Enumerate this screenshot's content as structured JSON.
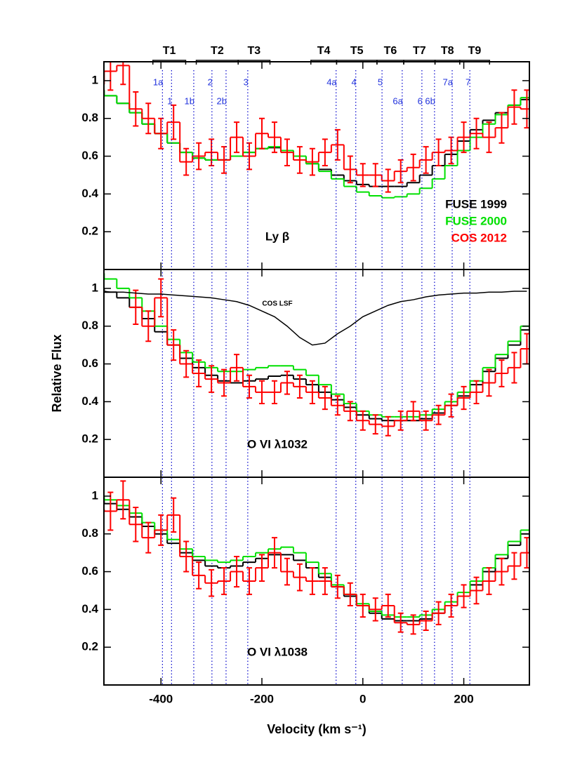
{
  "chart_data": [
    {
      "type": "step",
      "label": "Ly β",
      "x": [
        -525,
        -500,
        -475,
        -450,
        -425,
        -400,
        -375,
        -350,
        -325,
        -300,
        -275,
        -250,
        -225,
        -200,
        -175,
        -150,
        -125,
        -100,
        -75,
        -50,
        -25,
        0,
        25,
        50,
        75,
        100,
        125,
        150,
        175,
        200,
        225,
        250,
        275,
        300,
        325
      ],
      "series": [
        {
          "name": "FUSE 1999",
          "color": "#000000",
          "style": "steps",
          "values": [
            0.95,
            0.92,
            0.88,
            0.83,
            0.77,
            0.72,
            0.67,
            0.62,
            0.59,
            0.58,
            0.58,
            0.6,
            0.62,
            0.64,
            0.645,
            0.63,
            0.6,
            0.56,
            0.53,
            0.5,
            0.47,
            0.45,
            0.44,
            0.44,
            0.44,
            0.46,
            0.5,
            0.55,
            0.61,
            0.68,
            0.74,
            0.79,
            0.83,
            0.87,
            0.9
          ]
        },
        {
          "name": "FUSE 2000",
          "color": "#00e000",
          "style": "steps",
          "values": [
            0.95,
            0.92,
            0.88,
            0.83,
            0.77,
            0.72,
            0.67,
            0.62,
            0.59,
            0.58,
            0.58,
            0.6,
            0.62,
            0.64,
            0.65,
            0.63,
            0.6,
            0.56,
            0.52,
            0.48,
            0.44,
            0.41,
            0.39,
            0.38,
            0.385,
            0.4,
            0.43,
            0.48,
            0.55,
            0.63,
            0.7,
            0.77,
            0.82,
            0.87,
            0.91
          ]
        },
        {
          "name": "COS 2012",
          "color": "#ff0000",
          "style": "steps",
          "values": [
            0.98,
            1.05,
            1.08,
            0.85,
            0.8,
            0.72,
            0.78,
            0.57,
            0.6,
            0.62,
            0.58,
            0.7,
            0.6,
            0.72,
            0.7,
            0.62,
            0.58,
            0.57,
            0.62,
            0.66,
            0.53,
            0.5,
            0.5,
            0.47,
            0.52,
            0.54,
            0.58,
            0.62,
            0.63,
            0.7,
            0.72,
            0.7,
            0.75,
            0.86,
            0.85
          ],
          "errors": [
            0.1,
            0.1,
            0.1,
            0.09,
            0.08,
            0.08,
            0.09,
            0.07,
            0.07,
            0.07,
            0.07,
            0.08,
            0.07,
            0.08,
            0.08,
            0.07,
            0.07,
            0.07,
            0.07,
            0.08,
            0.07,
            0.06,
            0.06,
            0.06,
            0.06,
            0.07,
            0.07,
            0.07,
            0.07,
            0.08,
            0.08,
            0.08,
            0.08,
            0.09,
            0.1
          ]
        }
      ],
      "xlim": [
        -513,
        330
      ],
      "ylim": [
        0,
        1.1
      ],
      "xticks": [
        -400,
        -200,
        0,
        200
      ],
      "yticks": [
        0.2,
        0.4,
        0.6,
        0.8,
        1
      ],
      "ranges": [
        {
          "label": "T1",
          "from": -416,
          "to": -351
        },
        {
          "label": "T2",
          "from": -330,
          "to": -247
        },
        {
          "label": "T3",
          "from": -247,
          "to": -184
        },
        {
          "label": "T4",
          "from": -103,
          "to": -52
        },
        {
          "label": "T5",
          "from": -52,
          "to": 28
        },
        {
          "label": "T6",
          "from": 28,
          "to": 81
        },
        {
          "label": "T7",
          "from": 81,
          "to": 143
        },
        {
          "label": "T8",
          "from": 143,
          "to": 192
        },
        {
          "label": "T9",
          "from": 192,
          "to": 251
        }
      ],
      "components": [
        [
          {
            "label": "1a",
            "v": -397
          },
          {
            "label": "2",
            "v": -299
          },
          {
            "label": "3",
            "v": -228
          },
          {
            "label": "4a",
            "v": -53
          },
          {
            "label": "4",
            "v": -14
          },
          {
            "label": "5",
            "v": 38
          },
          {
            "label": "7a",
            "v": 177
          },
          {
            "label": "7",
            "v": 212
          }
        ],
        [
          {
            "label": "1",
            "v": -379
          },
          {
            "label": "1b",
            "v": -335
          },
          {
            "label": "2b",
            "v": -271
          },
          {
            "label": "6a",
            "v": 78
          },
          {
            "label": "6",
            "v": 117
          },
          {
            "label": "6b",
            "v": 142
          }
        ]
      ]
    },
    {
      "type": "step",
      "label": "O VI λ1032",
      "ylabel": "Relative Flux",
      "x": [
        -525,
        -500,
        -475,
        -450,
        -425,
        -400,
        -375,
        -350,
        -325,
        -300,
        -275,
        -250,
        -225,
        -200,
        -175,
        -150,
        -125,
        -100,
        -75,
        -50,
        -25,
        0,
        25,
        50,
        75,
        100,
        125,
        150,
        175,
        200,
        225,
        250,
        275,
        300,
        325
      ],
      "series": [
        {
          "color": "#000000",
          "style": "steps",
          "values": [
            1.0,
            0.98,
            0.95,
            0.9,
            0.84,
            0.77,
            0.7,
            0.63,
            0.58,
            0.54,
            0.51,
            0.5,
            0.51,
            0.52,
            0.535,
            0.54,
            0.52,
            0.49,
            0.45,
            0.41,
            0.37,
            0.33,
            0.31,
            0.3,
            0.3,
            0.3,
            0.31,
            0.34,
            0.38,
            0.43,
            0.49,
            0.56,
            0.63,
            0.7,
            0.78
          ]
        },
        {
          "color": "#00e000",
          "style": "steps",
          "values": [
            1.08,
            1.05,
            1.0,
            0.95,
            0.88,
            0.8,
            0.73,
            0.66,
            0.61,
            0.58,
            0.56,
            0.56,
            0.57,
            0.58,
            0.59,
            0.59,
            0.57,
            0.54,
            0.49,
            0.44,
            0.39,
            0.35,
            0.33,
            0.32,
            0.32,
            0.32,
            0.33,
            0.36,
            0.4,
            0.45,
            0.51,
            0.58,
            0.65,
            0.72,
            0.8
          ]
        },
        {
          "color": "#ff0000",
          "style": "steps",
          "values": [
            null,
            null,
            null,
            0.9,
            0.8,
            0.95,
            0.7,
            0.6,
            0.55,
            0.52,
            0.5,
            0.58,
            0.48,
            0.45,
            0.45,
            0.5,
            0.48,
            0.45,
            0.42,
            0.38,
            0.35,
            0.3,
            0.28,
            0.27,
            0.3,
            0.35,
            0.3,
            0.33,
            0.38,
            0.42,
            0.45,
            0.5,
            0.55,
            0.58,
            0.68
          ],
          "errors": [
            null,
            null,
            null,
            0.09,
            0.08,
            0.1,
            0.08,
            0.07,
            0.07,
            0.07,
            0.07,
            0.07,
            0.06,
            0.06,
            0.06,
            0.06,
            0.06,
            0.06,
            0.06,
            0.05,
            0.05,
            0.05,
            0.05,
            0.05,
            0.05,
            0.05,
            0.05,
            0.05,
            0.06,
            0.06,
            0.06,
            0.07,
            0.07,
            0.08,
            0.08
          ]
        },
        {
          "name": "COS LSF",
          "color": "#000000",
          "style": "line",
          "values": [
            0.99,
            0.98,
            0.98,
            0.975,
            0.97,
            0.97,
            0.965,
            0.96,
            0.955,
            0.95,
            0.94,
            0.93,
            0.91,
            0.88,
            0.85,
            0.8,
            0.74,
            0.7,
            0.71,
            0.76,
            0.8,
            0.85,
            0.88,
            0.91,
            0.93,
            0.94,
            0.955,
            0.965,
            0.97,
            0.975,
            0.975,
            0.98,
            0.98,
            0.985,
            0.985
          ]
        }
      ],
      "xlim": [
        -513,
        330
      ],
      "ylim": [
        0,
        1.1
      ],
      "xticks": [
        -400,
        -200,
        0,
        200
      ],
      "yticks": [
        0.2,
        0.4,
        0.6,
        0.8,
        1
      ]
    },
    {
      "type": "step",
      "label": "O VI λ1038",
      "xlabel": "Velocity (km s⁻¹)",
      "x": [
        -525,
        -500,
        -475,
        -450,
        -425,
        -400,
        -375,
        -350,
        -325,
        -300,
        -275,
        -250,
        -225,
        -200,
        -175,
        -150,
        -125,
        -100,
        -75,
        -50,
        -25,
        0,
        25,
        50,
        75,
        100,
        125,
        150,
        175,
        200,
        225,
        250,
        275,
        300,
        325
      ],
      "series": [
        {
          "color": "#000000",
          "style": "steps",
          "values": [
            0.99,
            0.96,
            0.93,
            0.89,
            0.84,
            0.8,
            0.75,
            0.7,
            0.66,
            0.63,
            0.62,
            0.63,
            0.65,
            0.67,
            0.69,
            0.69,
            0.66,
            0.62,
            0.57,
            0.52,
            0.47,
            0.42,
            0.38,
            0.35,
            0.34,
            0.34,
            0.35,
            0.38,
            0.42,
            0.47,
            0.53,
            0.6,
            0.67,
            0.74,
            0.8
          ]
        },
        {
          "color": "#00e000",
          "style": "steps",
          "values": [
            1.0,
            0.98,
            0.95,
            0.91,
            0.86,
            0.82,
            0.77,
            0.72,
            0.68,
            0.66,
            0.65,
            0.66,
            0.68,
            0.7,
            0.72,
            0.73,
            0.7,
            0.65,
            0.59,
            0.53,
            0.48,
            0.43,
            0.39,
            0.37,
            0.36,
            0.36,
            0.37,
            0.4,
            0.44,
            0.49,
            0.55,
            0.62,
            0.69,
            0.76,
            0.82
          ]
        },
        {
          "color": "#ff0000",
          "style": "steps",
          "values": [
            0.93,
            0.92,
            0.98,
            0.85,
            0.78,
            0.82,
            0.9,
            0.68,
            0.58,
            0.54,
            0.55,
            0.6,
            0.55,
            0.62,
            0.7,
            0.6,
            0.57,
            0.55,
            0.55,
            0.52,
            0.48,
            0.42,
            0.4,
            0.42,
            0.33,
            0.32,
            0.34,
            0.38,
            0.42,
            0.47,
            0.5,
            0.55,
            0.6,
            0.63,
            0.7
          ],
          "errors": [
            0.1,
            0.1,
            0.1,
            0.09,
            0.08,
            0.08,
            0.09,
            0.08,
            0.07,
            0.07,
            0.07,
            0.08,
            0.07,
            0.07,
            0.08,
            0.07,
            0.07,
            0.07,
            0.07,
            0.06,
            0.06,
            0.06,
            0.06,
            0.06,
            0.05,
            0.05,
            0.05,
            0.06,
            0.06,
            0.06,
            0.07,
            0.07,
            0.07,
            0.07,
            0.08
          ]
        }
      ],
      "xlim": [
        -513,
        330
      ],
      "ylim": [
        0,
        1.1
      ],
      "xticks": [
        -400,
        -200,
        0,
        200
      ],
      "yticks": [
        0.2,
        0.4,
        0.6,
        0.8,
        1
      ]
    }
  ]
}
